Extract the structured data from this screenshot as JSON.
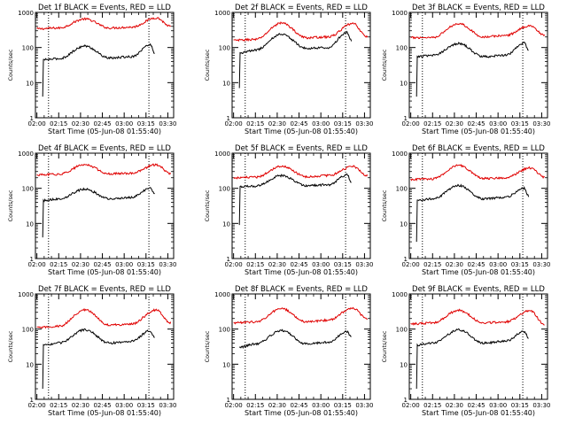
{
  "colors": {
    "events": "#000000",
    "lld": "#e00000",
    "axes": "#000000"
  },
  "chart_data": [
    {
      "type": "line",
      "title": "Det 1f BLACK = Events, RED = LLD",
      "xlabel": "Start Time (05-Jun-08 01:55:40)",
      "ylabel": "Counts/sec",
      "yscale": "log",
      "ylim": [
        1,
        1000
      ],
      "xlim": [
        "01:59",
        "03:34"
      ],
      "xticks": [
        "02:00",
        "02:15",
        "02:30",
        "02:45",
        "03:00",
        "03:15",
        "03:30"
      ],
      "yticks": [
        "1",
        "10",
        "100",
        "1000"
      ],
      "vlines": [
        "02:08",
        "03:17"
      ],
      "series": [
        {
          "color": "red",
          "start": "02:00",
          "end": "03:32",
          "points": [
            [
              "02:00",
              340
            ],
            [
              "02:15",
              360
            ],
            [
              "02:33",
              650
            ],
            [
              "02:50",
              360
            ],
            [
              "03:05",
              380
            ],
            [
              "03:22",
              700
            ],
            [
              "03:32",
              400
            ]
          ]
        },
        {
          "color": "black",
          "start": "02:04",
          "end": "03:21",
          "points": [
            [
              "02:04",
              4
            ],
            [
              "02:04",
              45
            ],
            [
              "02:15",
              48
            ],
            [
              "02:33",
              110
            ],
            [
              "02:50",
              50
            ],
            [
              "03:05",
              55
            ],
            [
              "03:18",
              120
            ],
            [
              "03:21",
              70
            ]
          ]
        }
      ]
    },
    {
      "type": "line",
      "title": "Det 2f BLACK = Events, RED = LLD",
      "xlabel": "Start Time (05-Jun-08 01:55:40)",
      "ylabel": "Counts/sec",
      "yscale": "log",
      "ylim": [
        1,
        1000
      ],
      "xlim": [
        "01:59",
        "03:34"
      ],
      "xticks": [
        "02:00",
        "02:15",
        "02:30",
        "02:45",
        "03:00",
        "03:15",
        "03:30"
      ],
      "yticks": [
        "1",
        "10",
        "100",
        "1000"
      ],
      "vlines": [
        "02:08",
        "03:17"
      ],
      "series": [
        {
          "color": "red",
          "start": "02:00",
          "end": "03:32",
          "points": [
            [
              "02:00",
              160
            ],
            [
              "02:15",
              170
            ],
            [
              "02:33",
              500
            ],
            [
              "02:50",
              190
            ],
            [
              "03:05",
              200
            ],
            [
              "03:22",
              480
            ],
            [
              "03:32",
              200
            ]
          ]
        },
        {
          "color": "black",
          "start": "02:04",
          "end": "03:21",
          "points": [
            [
              "02:04",
              7
            ],
            [
              "02:04",
              70
            ],
            [
              "02:15",
              85
            ],
            [
              "02:33",
              240
            ],
            [
              "02:50",
              95
            ],
            [
              "03:05",
              100
            ],
            [
              "03:18",
              270
            ],
            [
              "03:21",
              160
            ]
          ]
        }
      ]
    },
    {
      "type": "line",
      "title": "Det 3f BLACK = Events, RED = LLD",
      "xlabel": "Start Time (05-Jun-08 01:55:40)",
      "ylabel": "Counts/sec",
      "yscale": "log",
      "ylim": [
        1,
        1000
      ],
      "xlim": [
        "01:59",
        "03:34"
      ],
      "xticks": [
        "02:00",
        "02:15",
        "02:30",
        "02:45",
        "03:00",
        "03:15",
        "03:30"
      ],
      "yticks": [
        "1",
        "10",
        "100",
        "1000"
      ],
      "vlines": [
        "02:08",
        "03:17"
      ],
      "series": [
        {
          "color": "red",
          "start": "02:00",
          "end": "03:32",
          "points": [
            [
              "02:00",
              190
            ],
            [
              "02:15",
              195
            ],
            [
              "02:33",
              480
            ],
            [
              "02:50",
              200
            ],
            [
              "03:05",
              220
            ],
            [
              "03:22",
              420
            ],
            [
              "03:32",
              220
            ]
          ]
        },
        {
          "color": "black",
          "start": "02:04",
          "end": "03:21",
          "points": [
            [
              "02:04",
              4
            ],
            [
              "02:04",
              55
            ],
            [
              "02:15",
              60
            ],
            [
              "02:33",
              130
            ],
            [
              "02:50",
              55
            ],
            [
              "03:05",
              60
            ],
            [
              "03:18",
              135
            ],
            [
              "03:21",
              80
            ]
          ]
        }
      ]
    },
    {
      "type": "line",
      "title": "Det 4f BLACK = Events, RED = LLD",
      "xlabel": "Start Time (05-Jun-08 01:55:40)",
      "ylabel": "Counts/sec",
      "yscale": "log",
      "ylim": [
        1,
        1000
      ],
      "xlim": [
        "01:59",
        "03:34"
      ],
      "xticks": [
        "02:00",
        "02:15",
        "02:30",
        "02:45",
        "03:00",
        "03:15",
        "03:30"
      ],
      "yticks": [
        "1",
        "10",
        "100",
        "1000"
      ],
      "vlines": [
        "02:08",
        "03:17"
      ],
      "series": [
        {
          "color": "red",
          "start": "02:00",
          "end": "03:32",
          "points": [
            [
              "02:00",
              240
            ],
            [
              "02:15",
              250
            ],
            [
              "02:33",
              470
            ],
            [
              "02:50",
              260
            ],
            [
              "03:05",
              270
            ],
            [
              "03:22",
              470
            ],
            [
              "03:32",
              260
            ]
          ]
        },
        {
          "color": "black",
          "start": "02:04",
          "end": "03:21",
          "points": [
            [
              "02:04",
              4
            ],
            [
              "02:04",
              45
            ],
            [
              "02:15",
              50
            ],
            [
              "02:33",
              95
            ],
            [
              "02:50",
              50
            ],
            [
              "03:05",
              55
            ],
            [
              "03:18",
              100
            ],
            [
              "03:21",
              70
            ]
          ]
        }
      ]
    },
    {
      "type": "line",
      "title": "Det 5f BLACK = Events, RED = LLD",
      "xlabel": "Start Time (05-Jun-08 01:55:40)",
      "ylabel": "Counts/sec",
      "yscale": "log",
      "ylim": [
        1,
        1000
      ],
      "xlim": [
        "01:59",
        "03:34"
      ],
      "xticks": [
        "02:00",
        "02:15",
        "02:30",
        "02:45",
        "03:00",
        "03:15",
        "03:30"
      ],
      "yticks": [
        "1",
        "10",
        "100",
        "1000"
      ],
      "vlines": [
        "02:08",
        "03:17"
      ],
      "series": [
        {
          "color": "red",
          "start": "02:00",
          "end": "03:32",
          "points": [
            [
              "02:00",
              200
            ],
            [
              "02:15",
              205
            ],
            [
              "02:33",
              430
            ],
            [
              "02:50",
              215
            ],
            [
              "03:05",
              230
            ],
            [
              "03:22",
              420
            ],
            [
              "03:32",
              230
            ]
          ]
        },
        {
          "color": "black",
          "start": "02:04",
          "end": "03:21",
          "points": [
            [
              "02:04",
              9
            ],
            [
              "02:04",
              110
            ],
            [
              "02:15",
              115
            ],
            [
              "02:33",
              230
            ],
            [
              "02:50",
              120
            ],
            [
              "03:05",
              125
            ],
            [
              "03:18",
              240
            ],
            [
              "03:21",
              150
            ]
          ]
        }
      ]
    },
    {
      "type": "line",
      "title": "Det 6f BLACK = Events, RED = LLD",
      "xlabel": "Start Time (05-Jun-08 01:55:40)",
      "ylabel": "Counts/sec",
      "yscale": "log",
      "ylim": [
        1,
        1000
      ],
      "xlim": [
        "01:59",
        "03:34"
      ],
      "xticks": [
        "02:00",
        "02:15",
        "02:30",
        "02:45",
        "03:00",
        "03:15",
        "03:30"
      ],
      "yticks": [
        "1",
        "10",
        "100",
        "1000"
      ],
      "vlines": [
        "02:08",
        "03:17"
      ],
      "series": [
        {
          "color": "red",
          "start": "02:00",
          "end": "03:32",
          "points": [
            [
              "02:00",
              180
            ],
            [
              "02:15",
              185
            ],
            [
              "02:33",
              450
            ],
            [
              "02:50",
              190
            ],
            [
              "03:05",
              200
            ],
            [
              "03:22",
              380
            ],
            [
              "03:32",
              210
            ]
          ]
        },
        {
          "color": "black",
          "start": "02:04",
          "end": "03:21",
          "points": [
            [
              "02:04",
              3
            ],
            [
              "02:04",
              45
            ],
            [
              "02:15",
              50
            ],
            [
              "02:33",
              120
            ],
            [
              "02:50",
              50
            ],
            [
              "03:05",
              55
            ],
            [
              "03:18",
              100
            ],
            [
              "03:21",
              60
            ]
          ]
        }
      ]
    },
    {
      "type": "line",
      "title": "Det 7f BLACK = Events, RED = LLD",
      "xlabel": "Start Time (05-Jun-08 01:55:40)",
      "ylabel": "Counts/sec",
      "yscale": "log",
      "ylim": [
        1,
        1000
      ],
      "xlim": [
        "01:59",
        "03:34"
      ],
      "xticks": [
        "02:00",
        "02:15",
        "02:30",
        "02:45",
        "03:00",
        "03:15",
        "03:30"
      ],
      "yticks": [
        "1",
        "10",
        "100",
        "1000"
      ],
      "vlines": [
        "02:08",
        "03:17"
      ],
      "series": [
        {
          "color": "red",
          "start": "02:00",
          "end": "03:32",
          "points": [
            [
              "02:00",
              110
            ],
            [
              "02:15",
              120
            ],
            [
              "02:33",
              350
            ],
            [
              "02:50",
              130
            ],
            [
              "03:05",
              140
            ],
            [
              "03:22",
              350
            ],
            [
              "03:32",
              150
            ]
          ]
        },
        {
          "color": "black",
          "start": "02:04",
          "end": "03:21",
          "points": [
            [
              "02:04",
              2
            ],
            [
              "02:04",
              35
            ],
            [
              "02:15",
              40
            ],
            [
              "02:33",
              95
            ],
            [
              "02:50",
              40
            ],
            [
              "03:05",
              45
            ],
            [
              "03:18",
              90
            ],
            [
              "03:21",
              55
            ]
          ]
        }
      ]
    },
    {
      "type": "line",
      "title": "Det 8f BLACK = Events, RED = LLD",
      "xlabel": "Start Time (05-Jun-08 01:55:40)",
      "ylabel": "Counts/sec",
      "yscale": "log",
      "ylim": [
        1,
        1000
      ],
      "xlim": [
        "01:59",
        "03:34"
      ],
      "xticks": [
        "02:00",
        "02:15",
        "02:30",
        "02:45",
        "03:00",
        "03:15",
        "03:30"
      ],
      "yticks": [
        "1",
        "10",
        "100",
        "1000"
      ],
      "vlines": [
        "02:08",
        "03:17"
      ],
      "series": [
        {
          "color": "red",
          "start": "02:00",
          "end": "03:32",
          "points": [
            [
              "02:00",
              150
            ],
            [
              "02:15",
              160
            ],
            [
              "02:33",
              380
            ],
            [
              "02:50",
              160
            ],
            [
              "03:05",
              180
            ],
            [
              "03:22",
              400
            ],
            [
              "03:32",
              190
            ]
          ]
        },
        {
          "color": "black",
          "start": "02:04",
          "end": "03:21",
          "points": [
            [
              "02:04",
              30
            ],
            [
              "02:04",
              30
            ],
            [
              "02:15",
              38
            ],
            [
              "02:33",
              90
            ],
            [
              "02:50",
              38
            ],
            [
              "03:05",
              42
            ],
            [
              "03:18",
              85
            ],
            [
              "03:21",
              60
            ]
          ]
        }
      ]
    },
    {
      "type": "line",
      "title": "Det 9f BLACK = Events, RED = LLD",
      "xlabel": "Start Time (05-Jun-08 01:55:40)",
      "ylabel": "Counts/sec",
      "yscale": "log",
      "ylim": [
        1,
        1000
      ],
      "xlim": [
        "01:59",
        "03:34"
      ],
      "xticks": [
        "02:00",
        "02:15",
        "02:30",
        "02:45",
        "03:00",
        "03:15",
        "03:30"
      ],
      "yticks": [
        "1",
        "10",
        "100",
        "1000"
      ],
      "vlines": [
        "02:08",
        "03:17"
      ],
      "series": [
        {
          "color": "red",
          "start": "02:00",
          "end": "03:32",
          "points": [
            [
              "02:00",
              140
            ],
            [
              "02:15",
              150
            ],
            [
              "02:33",
              340
            ],
            [
              "02:50",
              150
            ],
            [
              "03:05",
              160
            ],
            [
              "03:22",
              330
            ],
            [
              "03:32",
              140
            ]
          ]
        },
        {
          "color": "black",
          "start": "02:04",
          "end": "03:21",
          "points": [
            [
              "02:04",
              2
            ],
            [
              "02:04",
              35
            ],
            [
              "02:15",
              40
            ],
            [
              "02:33",
              95
            ],
            [
              "02:50",
              40
            ],
            [
              "03:05",
              45
            ],
            [
              "03:18",
              85
            ],
            [
              "03:21",
              55
            ]
          ]
        }
      ]
    }
  ]
}
